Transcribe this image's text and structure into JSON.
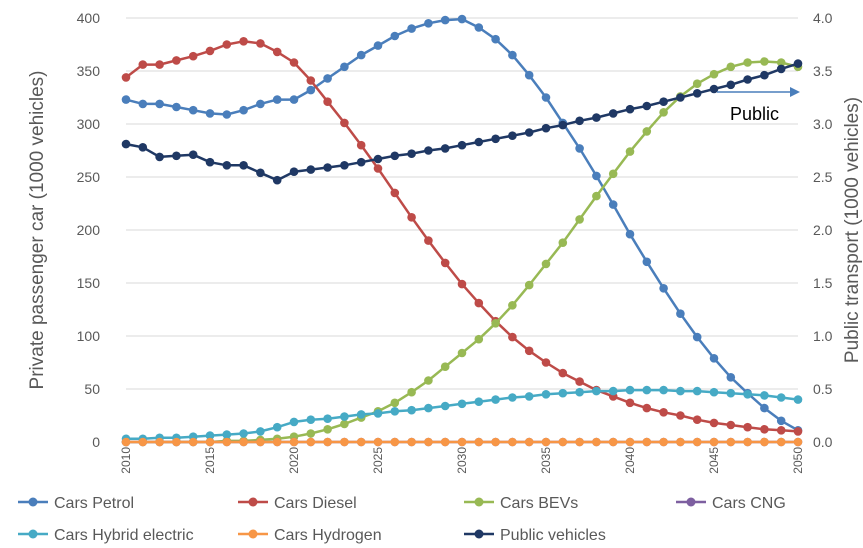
{
  "chart_data": {
    "type": "line",
    "x": [
      2010,
      2011,
      2012,
      2013,
      2014,
      2015,
      2016,
      2017,
      2018,
      2019,
      2020,
      2021,
      2022,
      2023,
      2024,
      2025,
      2026,
      2027,
      2028,
      2029,
      2030,
      2031,
      2032,
      2033,
      2034,
      2035,
      2036,
      2037,
      2038,
      2039,
      2040,
      2041,
      2042,
      2043,
      2044,
      2045,
      2046,
      2047,
      2048,
      2049,
      2050
    ],
    "x_ticks": [
      "2010",
      "2015",
      "2020",
      "2025",
      "2030",
      "2035",
      "2040",
      "2045",
      "2050"
    ],
    "ylabel": "Private passenger car (1000 vehicles)",
    "y2label": "Public transport (1000 vehicles)",
    "ylim": [
      0,
      400
    ],
    "y2lim": [
      0,
      4.0
    ],
    "y_ticks": [
      "0",
      "50",
      "100",
      "150",
      "200",
      "250",
      "300",
      "350",
      "400"
    ],
    "y2_ticks": [
      "0.0",
      "0.5",
      "1.0",
      "1.5",
      "2.0",
      "2.5",
      "3.0",
      "3.5",
      "4.0"
    ],
    "grid": "horizontal",
    "legend_position": "bottom",
    "annotation": {
      "text": "Public"
    },
    "series": [
      {
        "name": "Cars Petrol",
        "axis": "left",
        "color": "#4a7ebb",
        "values": [
          323,
          319,
          319,
          316,
          313,
          310,
          309,
          313,
          319,
          323,
          323,
          332,
          343,
          354,
          365,
          374,
          383,
          390,
          395,
          398,
          399,
          391,
          380,
          365,
          346,
          325,
          301,
          277,
          251,
          224,
          196,
          170,
          145,
          121,
          99,
          79,
          61,
          46,
          32,
          20,
          11
        ]
      },
      {
        "name": "Cars Diesel",
        "axis": "left",
        "color": "#be4b48",
        "values": [
          344,
          356,
          356,
          360,
          364,
          369,
          375,
          378,
          376,
          368,
          358,
          341,
          321,
          301,
          280,
          258,
          235,
          212,
          190,
          169,
          149,
          131,
          114,
          99,
          86,
          75,
          65,
          57,
          49,
          43,
          37,
          32,
          28,
          25,
          21,
          18,
          16,
          14,
          12,
          11,
          10
        ]
      },
      {
        "name": "Cars BEVs",
        "axis": "left",
        "color": "#98b954",
        "values": [
          0,
          0,
          0,
          0,
          0,
          0,
          1,
          1,
          2,
          3,
          5,
          8,
          12,
          17,
          23,
          29,
          37,
          47,
          58,
          71,
          84,
          97,
          112,
          129,
          148,
          168,
          188,
          210,
          232,
          253,
          274,
          293,
          311,
          326,
          338,
          347,
          354,
          358,
          359,
          358,
          354
        ]
      },
      {
        "name": "Cars CNG",
        "axis": "left",
        "color": "#7d5fa0",
        "values": [
          0,
          0,
          0,
          0,
          0,
          0,
          0,
          0,
          0,
          0,
          0,
          0,
          0,
          0,
          0,
          0,
          0,
          0,
          0,
          0,
          0,
          0,
          0,
          0,
          0,
          0,
          0,
          0,
          0,
          0,
          0,
          0,
          0,
          0,
          0,
          0,
          0,
          0,
          0,
          0,
          0
        ]
      },
      {
        "name": "Cars Hybrid electric",
        "axis": "left",
        "color": "#46aac5",
        "values": [
          3,
          3,
          4,
          4,
          5,
          6,
          7,
          8,
          10,
          14,
          19,
          21,
          22,
          24,
          26,
          27,
          29,
          30,
          32,
          34,
          36,
          38,
          40,
          42,
          43,
          45,
          46,
          47,
          48,
          48,
          49,
          49,
          49,
          48,
          48,
          47,
          46,
          45,
          44,
          42,
          40
        ]
      },
      {
        "name": "Cars Hydrogen",
        "axis": "left",
        "color": "#f79646",
        "values": [
          0,
          0,
          0,
          0,
          0,
          0,
          0,
          0,
          0,
          0,
          0,
          0,
          0,
          0,
          0,
          0,
          0,
          0,
          0,
          0,
          0,
          0,
          0,
          0,
          0,
          0,
          0,
          0,
          0,
          0,
          0,
          0,
          0,
          0,
          0,
          0,
          0,
          0,
          0,
          0,
          0
        ]
      },
      {
        "name": "Public vehicles",
        "axis": "right",
        "color": "#1f3864",
        "values": [
          2.81,
          2.78,
          2.69,
          2.7,
          2.71,
          2.64,
          2.61,
          2.61,
          2.54,
          2.47,
          2.55,
          2.57,
          2.59,
          2.61,
          2.64,
          2.67,
          2.7,
          2.72,
          2.75,
          2.77,
          2.8,
          2.83,
          2.86,
          2.89,
          2.92,
          2.96,
          2.99,
          3.03,
          3.06,
          3.1,
          3.14,
          3.17,
          3.21,
          3.25,
          3.29,
          3.33,
          3.37,
          3.42,
          3.46,
          3.52,
          3.57
        ]
      }
    ]
  }
}
